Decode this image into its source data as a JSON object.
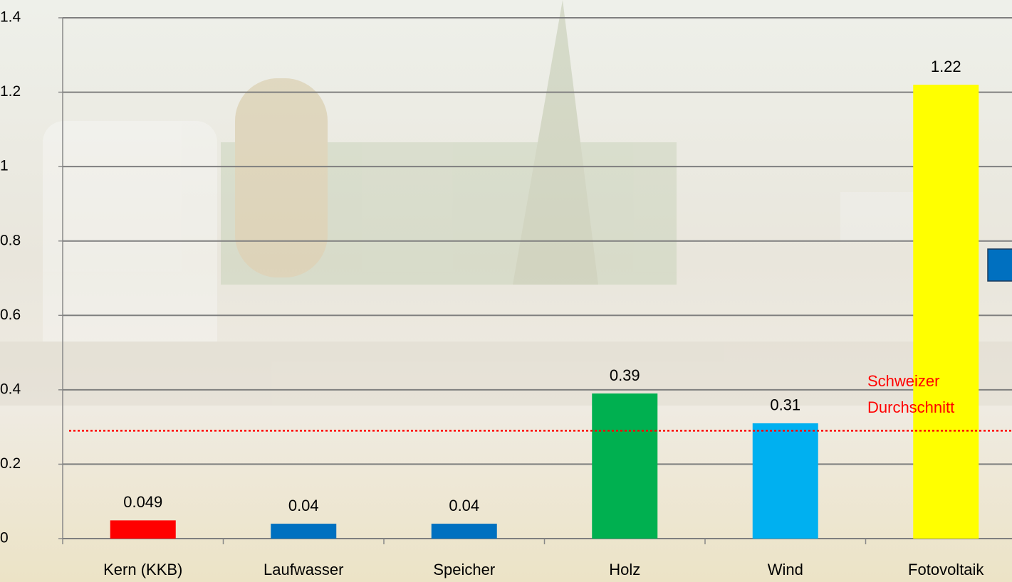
{
  "chart_data": {
    "type": "bar",
    "categories": [
      "Kern (KKB)",
      "Laufwasser",
      "Speicher",
      "Holz",
      "Wind",
      "Fotovoltaik"
    ],
    "values": [
      0.049,
      0.04,
      0.04,
      0.39,
      0.31,
      1.22
    ],
    "colors": [
      "#ff0000",
      "#0070c0",
      "#0070c0",
      "#00b050",
      "#00b0f0",
      "#ffff00"
    ],
    "ylim": [
      0,
      1.4
    ],
    "yticks": [
      0,
      0.2,
      0.4,
      0.6,
      0.8,
      1,
      1.2,
      1.4
    ],
    "grid": true,
    "reference_line": {
      "value": 0.29,
      "color": "#ff0000",
      "label": [
        "Schweizer",
        "Durchschnitt"
      ]
    }
  }
}
